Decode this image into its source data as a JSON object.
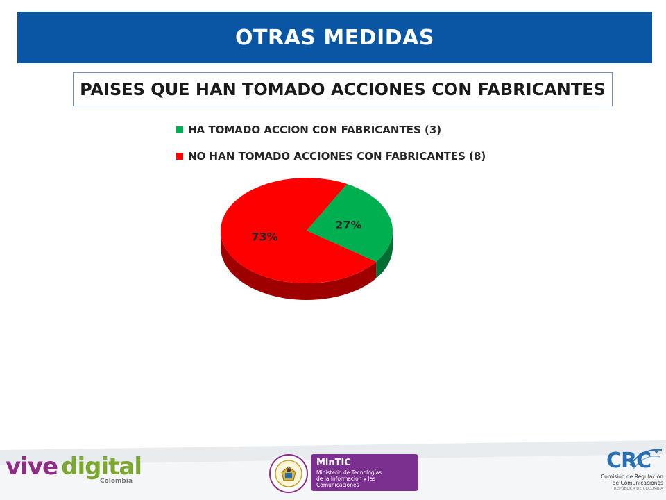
{
  "header": {
    "title": "OTRAS MEDIDAS"
  },
  "chart_data": {
    "type": "pie",
    "title": "PAISES QUE HAN TOMADO ACCIONES CON FABRICANTES",
    "categories": [
      "HA TOMADO ACCION CON FABRICANTES (3)",
      "NO HAN TOMADO ACCIONES CON FABRICANTES (8)"
    ],
    "values": [
      3,
      8
    ],
    "data_labels": [
      "27%",
      "73%"
    ],
    "colors": [
      "#00b050",
      "#ff0000"
    ],
    "style": "3d",
    "legend_position": "top"
  },
  "footer": {
    "vive_digital": {
      "word1": "vive",
      "word2": "digital",
      "country": "Colombia",
      "color1": "#8e2c86",
      "color2": "#7ba730"
    },
    "seal_text": "REPÚBLICA DE COLOMBIA",
    "mintic": {
      "title": "MinTIC",
      "line1": "Ministerio de Tecnologías",
      "line2": "de la Información y las Comunicaciones"
    },
    "crc": {
      "logo": "CRC",
      "line1": "Comisión de Regulación",
      "line2": "de Comunicaciones",
      "line3": "REPÚBLICA DE COLOMBIA"
    }
  }
}
